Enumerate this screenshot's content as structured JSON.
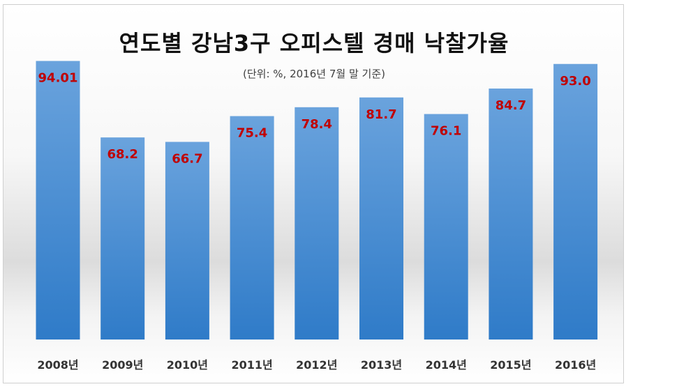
{
  "chart_data": {
    "type": "bar",
    "title": "연도별 강남3구 오피스텔 경매 낙찰가율",
    "subtitle": "(단위: %, 2016년 7월 말 기준)",
    "categories": [
      "2008년",
      "2009년",
      "2010년",
      "2011년",
      "2012년",
      "2013년",
      "2014년",
      "2015년",
      "2016년"
    ],
    "values": [
      94.01,
      68.2,
      66.7,
      75.4,
      78.4,
      81.7,
      76.1,
      84.7,
      93.0
    ],
    "value_labels": [
      "94.01",
      "68.2",
      "66.7",
      "75.4",
      "78.4",
      "81.7",
      "76.1",
      "84.7",
      "93.0"
    ],
    "xlabel": "",
    "ylabel": "",
    "ylim": [
      0,
      100
    ],
    "grid": false,
    "legend": "none",
    "colors": {
      "bar_top": "#6aa3dd",
      "bar_bottom": "#2f7bc8",
      "label": "#c00000",
      "tick": "#333333"
    }
  }
}
